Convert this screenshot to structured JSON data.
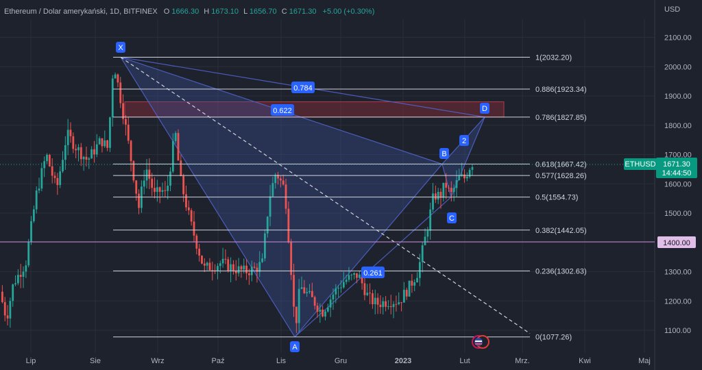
{
  "header": {
    "symbol_title": "Ethereum / Dolar amerykański, 1D, BITFINEX",
    "o_label": "O",
    "o_value": "1666.30",
    "h_label": "H",
    "h_value": "1673.10",
    "l_label": "L",
    "l_value": "1656.70",
    "c_label": "C",
    "c_value": "1671.30",
    "change": "+5.00 (+0.30%)"
  },
  "chart_data": {
    "type": "candlestick",
    "currency": "USD",
    "ylim": [
      1030,
      2200
    ],
    "y_ticks": [
      "1100.00",
      "1200.00",
      "1300.00",
      "1400.00",
      "1500.00",
      "1600.00",
      "1700.00",
      "1800.00",
      "1900.00",
      "2000.00",
      "2100.00"
    ],
    "x_ticks": [
      "Lip",
      "Sie",
      "Wrz",
      "Paź",
      "Lis",
      "Gru",
      "2023",
      "Lut",
      "Mrz.",
      "Kwi",
      "Maj"
    ],
    "fib_levels": [
      {
        "label": "1(2032.20)",
        "value": 2032.2
      },
      {
        "label": "0.886(1923.34)",
        "value": 1923.34
      },
      {
        "label": "0.786(1827.85)",
        "value": 1827.85
      },
      {
        "label": "0.618(1667.42)",
        "value": 1667.42
      },
      {
        "label": "0.577(1628.26)",
        "value": 1628.26
      },
      {
        "label": "0.5(1554.73)",
        "value": 1554.73
      },
      {
        "label": "0.382(1442.05)",
        "value": 1442.05
      },
      {
        "label": "0.236(1302.63)",
        "value": 1302.63
      },
      {
        "label": "0(1077.26)",
        "value": 1077.26
      }
    ],
    "horizontal_line": {
      "value": 1400,
      "label": "1400.00"
    },
    "last_price": {
      "symbol": "ETHUSD",
      "value": 1671.3,
      "label": "1671.30",
      "countdown": "14:44:50"
    },
    "pattern_points": [
      {
        "label": "X",
        "price": 2032.2
      },
      {
        "label": "A",
        "price": 1077.26
      },
      {
        "label": "B",
        "price": 1667.42
      },
      {
        "label": "C",
        "price": 1554.73
      },
      {
        "label": "D",
        "price": 1827.85
      }
    ],
    "extra_point_label": "2",
    "ratios": [
      "0.784",
      "0.622",
      "0.261"
    ],
    "zone": {
      "from": 1827.85,
      "to": 1880
    },
    "colors": {
      "up": "#26a69a",
      "down": "#ef5350",
      "fib_line": "#d1d4dc",
      "pattern": "#4f63c9",
      "pattern_fill": "#3d4f9a",
      "zone": "#8a2f3b",
      "purple_line": "#c58fd9",
      "price_tag": "#089981",
      "label_bg": "#2962ff"
    }
  }
}
